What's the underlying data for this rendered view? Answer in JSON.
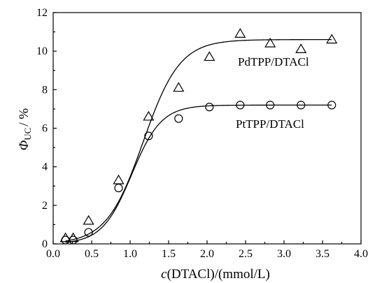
{
  "chart_data": {
    "type": "scatter",
    "title": "",
    "xlabel": {
      "italic": "c",
      "text": "(DTACl)/(mmol/L)"
    },
    "ylabel": {
      "symbol": "Φ",
      "subscript": "UC",
      "text": "/ %"
    },
    "xlim": [
      0.0,
      4.0
    ],
    "ylim": [
      0,
      12
    ],
    "xticks": [
      "0.0",
      "0.5",
      "1.0",
      "1.5",
      "2.0",
      "2.5",
      "3.0",
      "3.5",
      "4.0"
    ],
    "yticks": [
      "0",
      "2",
      "4",
      "6",
      "8",
      "10",
      "12"
    ],
    "grid": false,
    "series": [
      {
        "name": "PdTPP/DTACl",
        "marker": "triangle",
        "x": [
          0.16,
          0.26,
          0.46,
          0.85,
          1.24,
          1.63,
          2.03,
          2.43,
          2.82,
          3.22,
          3.62
        ],
        "y": [
          0.3,
          0.3,
          1.2,
          3.3,
          6.6,
          8.1,
          9.7,
          10.9,
          10.4,
          10.1,
          10.6
        ],
        "fit": {
          "model": "sigmoid",
          "max": 10.6,
          "x0": 1.17,
          "k": 4.2
        }
      },
      {
        "name": "PtTPP/DTACl",
        "marker": "circle",
        "x": [
          0.16,
          0.26,
          0.46,
          0.85,
          1.24,
          1.63,
          2.03,
          2.43,
          2.82,
          3.22,
          3.62
        ],
        "y": [
          0.2,
          0.2,
          0.6,
          2.9,
          5.6,
          6.5,
          7.1,
          7.2,
          7.2,
          7.2,
          7.2
        ],
        "fit": {
          "model": "sigmoid",
          "max": 7.2,
          "x0": 1.02,
          "k": 5.2
        }
      }
    ]
  }
}
